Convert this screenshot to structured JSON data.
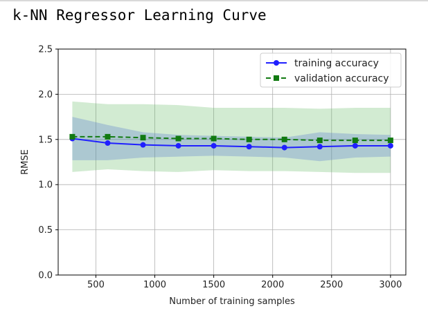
{
  "page": {
    "heading": "k-NN Regressor Learning Curve"
  },
  "chart_data": {
    "type": "line",
    "xlabel": "Number of training samples",
    "ylabel": "RMSE",
    "xlim": [
      180,
      3130
    ],
    "ylim": [
      0.0,
      2.5
    ],
    "xticks": [
      500,
      1000,
      1500,
      2000,
      2500,
      3000
    ],
    "yticks": [
      0.0,
      0.5,
      1.0,
      1.5,
      2.0,
      2.5
    ],
    "grid": true,
    "legend_position": "upper right",
    "x": [
      300,
      600,
      900,
      1200,
      1500,
      1800,
      2100,
      2400,
      2700,
      3000
    ],
    "series": [
      {
        "name": "training accuracy",
        "color": "#1f1fff",
        "band_color": "#4a6fd0",
        "marker": "circle",
        "linestyle": "solid",
        "values": [
          1.51,
          1.46,
          1.44,
          1.43,
          1.43,
          1.42,
          1.41,
          1.42,
          1.43,
          1.43
        ],
        "band_upper": [
          1.75,
          1.66,
          1.58,
          1.55,
          1.54,
          1.53,
          1.52,
          1.58,
          1.56,
          1.55
        ],
        "band_lower": [
          1.27,
          1.27,
          1.3,
          1.31,
          1.32,
          1.31,
          1.3,
          1.26,
          1.3,
          1.31
        ]
      },
      {
        "name": "validation accuracy",
        "color": "#117a11",
        "band_color": "#5cb85c",
        "marker": "square",
        "linestyle": "dashed",
        "values": [
          1.53,
          1.53,
          1.52,
          1.51,
          1.51,
          1.5,
          1.5,
          1.49,
          1.49,
          1.49
        ],
        "band_upper": [
          1.92,
          1.89,
          1.89,
          1.88,
          1.85,
          1.85,
          1.85,
          1.84,
          1.85,
          1.85
        ],
        "band_lower": [
          1.14,
          1.17,
          1.15,
          1.14,
          1.16,
          1.15,
          1.15,
          1.14,
          1.13,
          1.13
        ]
      }
    ]
  }
}
